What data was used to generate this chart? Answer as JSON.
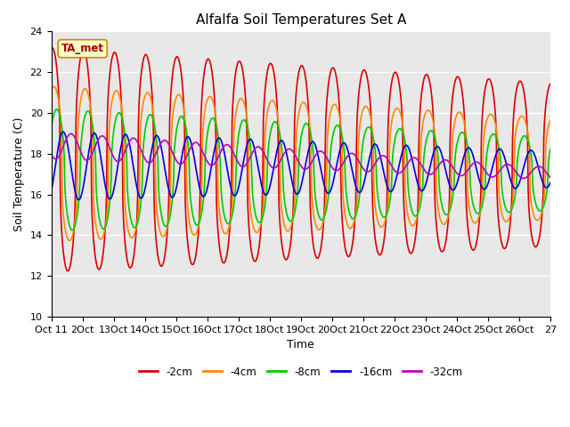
{
  "title": "Alfalfa Soil Temperatures Set A",
  "xlabel": "Time",
  "ylabel": "Soil Temperature (C)",
  "ylim": [
    10,
    24
  ],
  "series": {
    "-2cm": {
      "color": "#dd0000",
      "lw": 1.2
    },
    "-4cm": {
      "color": "#ff8800",
      "lw": 1.2
    },
    "-8cm": {
      "color": "#00cc00",
      "lw": 1.2
    },
    "-16cm": {
      "color": "#0000dd",
      "lw": 1.2
    },
    "-32cm": {
      "color": "#bb00bb",
      "lw": 1.2
    }
  },
  "annotation_text": "TA_met",
  "annotation_color": "#aa0000",
  "plot_bg": "#e8e8e8",
  "title_fontsize": 11,
  "axis_fontsize": 9,
  "tick_fontsize": 8
}
